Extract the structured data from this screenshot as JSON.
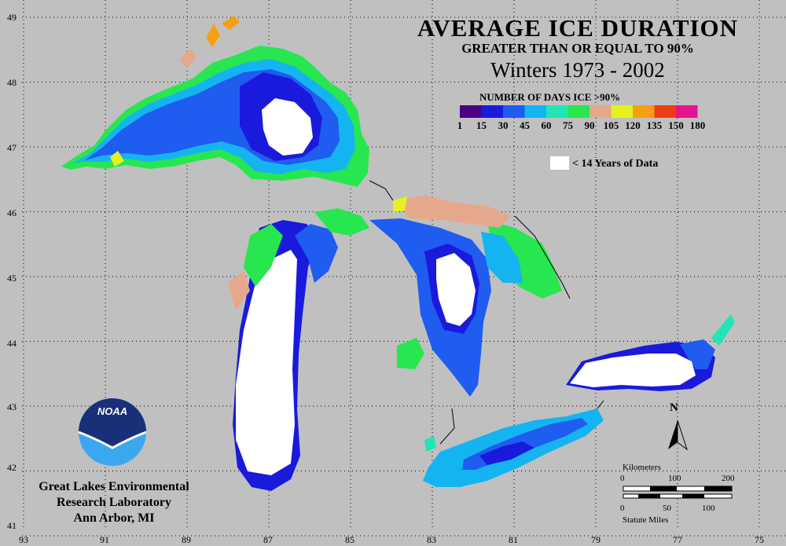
{
  "title": "AVERAGE ICE DURATION",
  "subtitle": "GREATER THAN OR EQUAL TO 90%",
  "period": "Winters 1973  - 2002",
  "legend": {
    "title": "NUMBER OF DAYS ICE >90%",
    "colors": [
      "#4b0082",
      "#1a1adc",
      "#1f5cf0",
      "#14b4f0",
      "#1fe6b4",
      "#28e650",
      "#e6a88c",
      "#e6f01e",
      "#f5a014",
      "#f03c14",
      "#e6148c"
    ],
    "ticks": [
      "1",
      "15",
      "30",
      "45",
      "60",
      "75",
      "90",
      "105",
      "120",
      "135",
      "150",
      "180"
    ]
  },
  "nodata": {
    "label": "< 14 Years of Data",
    "color": "#ffffff"
  },
  "lat_labels": [
    "49",
    "48",
    "47",
    "46",
    "45",
    "44",
    "43",
    "42",
    "41"
  ],
  "lon_labels": [
    "93",
    "91",
    "89",
    "87",
    "85",
    "83",
    "81",
    "79",
    "77",
    "75"
  ],
  "north_label": "N",
  "scale": {
    "km_label": "Kilometers",
    "km_ticks": [
      "0",
      "100",
      "200"
    ],
    "mi_label": "Statute Miles",
    "mi_ticks": [
      "0",
      "50",
      "100"
    ]
  },
  "noaa_logo_text": "NOAA",
  "organization": [
    "Great Lakes Environmental",
    "Research Laboratory",
    "Ann Arbor, MI"
  ]
}
